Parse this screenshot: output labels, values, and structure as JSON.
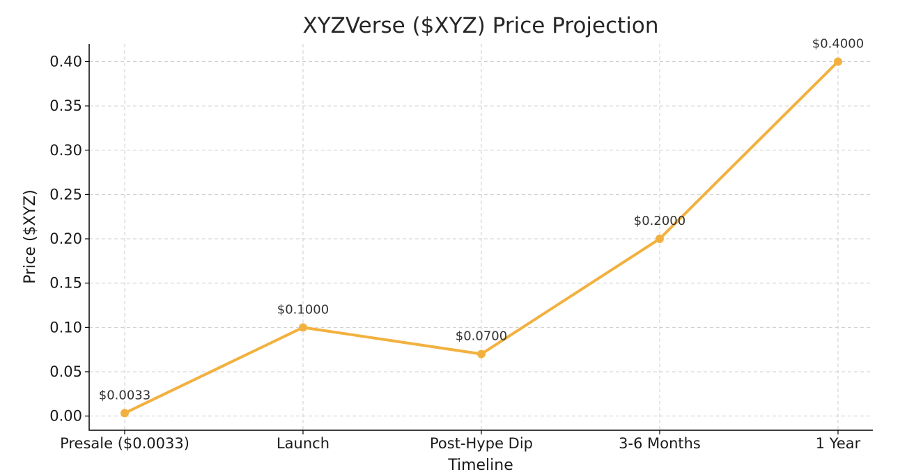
{
  "chart_data": {
    "type": "line",
    "title": "XYZVerse ($XYZ) Price Projection",
    "xlabel": "Timeline",
    "ylabel": "Price ($XYZ)",
    "categories": [
      "Presale ($0.0033)",
      "Launch",
      "Post-Hype Dip",
      "3-6 Months",
      "1 Year"
    ],
    "series": [
      {
        "values": [
          0.0033,
          0.1,
          0.07,
          0.2,
          0.4
        ],
        "labels": [
          "$0.0033",
          "$0.1000",
          "$0.0700",
          "$0.2000",
          "$0.4000"
        ],
        "color": "#f2b13f"
      }
    ],
    "yticks": [
      "0.00",
      "0.05",
      "0.10",
      "0.15",
      "0.20",
      "0.25",
      "0.30",
      "0.35",
      "0.40"
    ],
    "ylim": [
      -0.016,
      0.42
    ],
    "grid": true,
    "legend": "none"
  }
}
